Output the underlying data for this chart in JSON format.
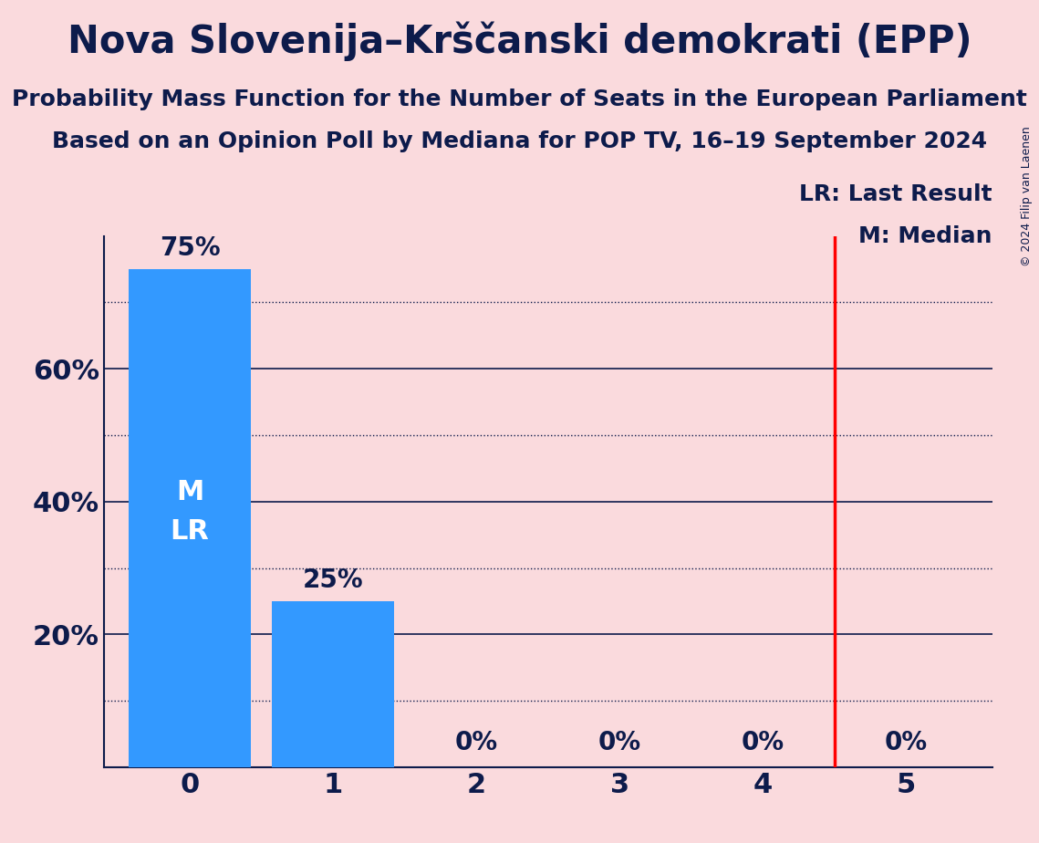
{
  "title": "Nova Slovenija–Krščanski demokrati (EPP)",
  "subtitle1": "Probability Mass Function for the Number of Seats in the European Parliament",
  "subtitle2": "Based on an Opinion Poll by Mediana for POP TV, 16–19 September 2024",
  "copyright": "© 2024 Filip van Laenen",
  "seats": [
    0,
    1,
    2,
    3,
    4,
    5
  ],
  "probabilities": [
    0.75,
    0.25,
    0.0,
    0.0,
    0.0,
    0.0
  ],
  "bar_color": "#3399FF",
  "background_color": "#FADADD",
  "last_result": 4.5,
  "median": 0,
  "lr_line_color": "#FF0000",
  "text_color": "#0D1B4B",
  "bar_label_color_inside": "#FFFFFF",
  "bar_label_color_outside": "#0D1B4B",
  "ylim": [
    0,
    0.8
  ],
  "yticks": [
    0.2,
    0.4,
    0.6
  ],
  "solid_grid": [
    0.2,
    0.4,
    0.6
  ],
  "dotted_grid": [
    0.1,
    0.3,
    0.5,
    0.7
  ],
  "title_fontsize": 30,
  "subtitle_fontsize": 18,
  "tick_fontsize": 22,
  "bar_label_fontsize": 20,
  "ml_label_fontsize": 22,
  "legend_fontsize": 18,
  "copyright_fontsize": 9,
  "lr_legend": "LR: Last Result",
  "m_legend": "M: Median",
  "ml_label": "M\nLR"
}
